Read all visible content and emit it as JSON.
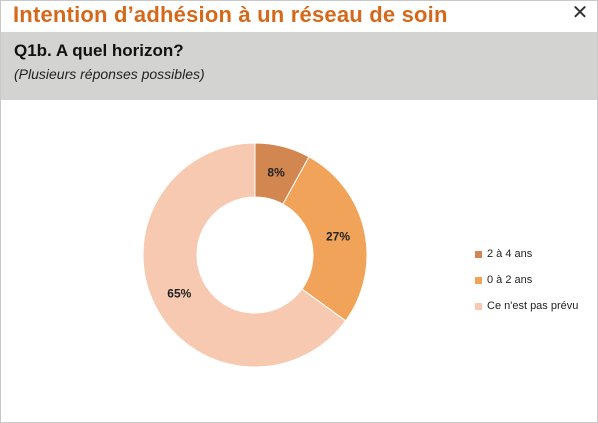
{
  "window": {
    "title": "Intention d’adhésion à un réseau de soin",
    "close_glyph": "✕"
  },
  "header": {
    "question": "Q1b. A quel horizon?",
    "subtitle": "(Plusieurs réponses possibles)"
  },
  "colors": {
    "title": "#d4691c",
    "band": "#d3d3d1"
  },
  "chart_data": {
    "type": "pie",
    "donut": true,
    "categories": [
      "2 à 4 ans",
      "0 à 2 ans",
      "Ce n'est pas prévu"
    ],
    "values": [
      8,
      27,
      65
    ],
    "labels": [
      "8%",
      "27%",
      "65%"
    ],
    "colors": [
      "#d28650",
      "#f2a35a",
      "#f7c9b0"
    ],
    "legend_position": "right"
  }
}
